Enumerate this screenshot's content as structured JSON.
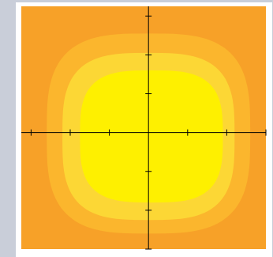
{
  "chart_data": {
    "type": "heatmap",
    "title": "",
    "xlabel": "",
    "ylabel": "",
    "xlim": [
      -3.25,
      3.0
    ],
    "ylim": [
      -3.0,
      3.25
    ],
    "grid": false,
    "legend": "none",
    "x_ticks": [
      -3,
      -2,
      -1,
      0,
      1,
      2,
      3
    ],
    "y_ticks": [
      -3,
      -2,
      -1,
      0,
      1,
      2,
      3
    ],
    "contour_levels": [
      {
        "level": 1,
        "color": "#f7a128"
      },
      {
        "level": 2,
        "color": "#fbb62d"
      },
      {
        "level": 3,
        "color": "#fcd735"
      },
      {
        "level": 4,
        "color": "#fef000"
      }
    ],
    "regions": [
      {
        "level": 2,
        "x_extent": [
          -2.6,
          2.6
        ],
        "y_extent": [
          -2.6,
          2.55
        ]
      },
      {
        "level": 3,
        "x_extent": [
          -2.2,
          2.2
        ],
        "y_extent": [
          -2.25,
          2.05
        ]
      },
      {
        "level": 4,
        "x_extent": [
          -1.75,
          1.9
        ],
        "y_extent": [
          -1.8,
          1.6
        ]
      }
    ]
  }
}
